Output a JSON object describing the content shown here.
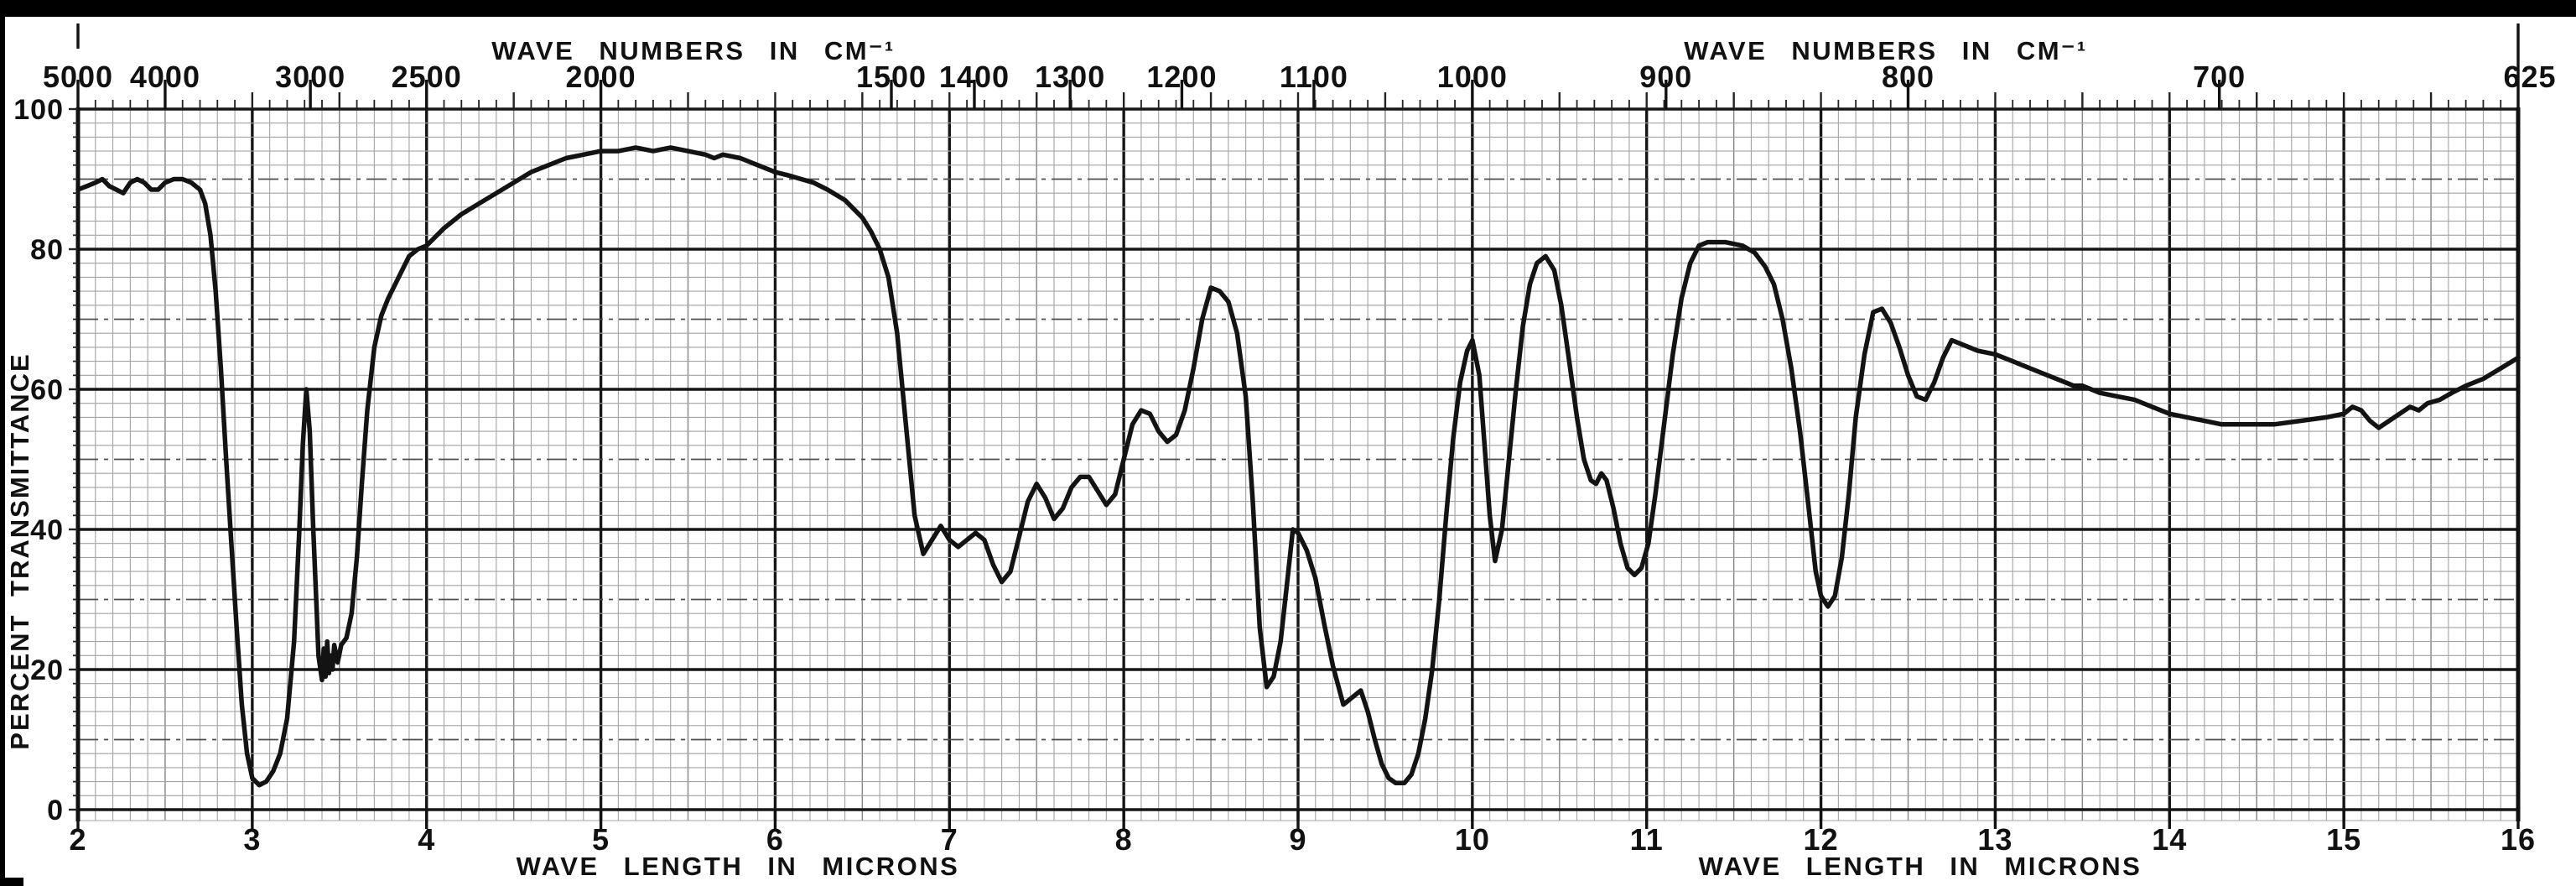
{
  "colors": {
    "paper": "#ffffff",
    "ink": "#111111",
    "grid_minor": "#a3a3a3",
    "grid_dashdot": "#4d4d4d",
    "grid_major": "#161616",
    "scan_border": "#000000"
  },
  "top_axis": {
    "title": "WAVE NUMBERS IN CM⁻¹",
    "ticks": [
      {
        "label": "5000",
        "wavenumber": 5000
      },
      {
        "label": "4000",
        "wavenumber": 4000
      },
      {
        "label": "3000",
        "wavenumber": 3000
      },
      {
        "label": "2500",
        "wavenumber": 2500
      },
      {
        "label": "2000",
        "wavenumber": 2000
      },
      {
        "label": "1500",
        "wavenumber": 1500
      },
      {
        "label": "1400",
        "wavenumber": 1400
      },
      {
        "label": "1300",
        "wavenumber": 1300
      },
      {
        "label": "1200",
        "wavenumber": 1200
      },
      {
        "label": "1100",
        "wavenumber": 1100
      },
      {
        "label": "1000",
        "wavenumber": 1000
      },
      {
        "label": "900",
        "wavenumber": 900
      },
      {
        "label": "800",
        "wavenumber": 800
      },
      {
        "label": "700",
        "wavenumber": 700
      },
      {
        "label": "625",
        "wavenumber": 625
      }
    ]
  },
  "left_axis": {
    "title": "PERCENT TRANSMITTANCE",
    "ticks": [
      {
        "label": "100",
        "value": 100
      },
      {
        "label": "80",
        "value": 80
      },
      {
        "label": "60",
        "value": 60
      },
      {
        "label": "40",
        "value": 40
      },
      {
        "label": "20",
        "value": 20
      },
      {
        "label": "0",
        "value": 0
      }
    ]
  },
  "bottom_axis": {
    "title": "WAVE LENGTH IN MICRONS",
    "ticks": [
      {
        "label": "2",
        "value": 2
      },
      {
        "label": "3",
        "value": 3
      },
      {
        "label": "4",
        "value": 4
      },
      {
        "label": "5",
        "value": 5
      },
      {
        "label": "6",
        "value": 6
      },
      {
        "label": "7",
        "value": 7
      },
      {
        "label": "8",
        "value": 8
      },
      {
        "label": "9",
        "value": 9
      },
      {
        "label": "10",
        "value": 10
      },
      {
        "label": "11",
        "value": 11
      },
      {
        "label": "12",
        "value": 12
      },
      {
        "label": "13",
        "value": 13
      },
      {
        "label": "14",
        "value": 14
      },
      {
        "label": "15",
        "value": 15
      },
      {
        "label": "16",
        "value": 16
      }
    ]
  },
  "chart_data": {
    "type": "line",
    "title": "",
    "xlabel": "WAVE LENGTH IN MICRONS",
    "ylabel": "PERCENT TRANSMITTANCE",
    "secondary_xlabel": "WAVE NUMBERS IN CM⁻¹",
    "x_unit": "microns",
    "y_unit": "percent transmittance",
    "xlim": [
      2,
      16
    ],
    "ylim": [
      0,
      100
    ],
    "grid": "on",
    "x_ticks_microns": [
      2,
      3,
      4,
      5,
      6,
      7,
      8,
      9,
      10,
      11,
      12,
      13,
      14,
      15,
      16
    ],
    "secondary_x_ticks_cm1": [
      5000,
      4000,
      3000,
      2500,
      2000,
      1500,
      1400,
      1300,
      1200,
      1100,
      1000,
      900,
      800,
      700,
      625
    ],
    "y_ticks": [
      0,
      20,
      40,
      60,
      80,
      100
    ],
    "points": [
      [
        2.0,
        88.5
      ],
      [
        2.05,
        89
      ],
      [
        2.1,
        89.5
      ],
      [
        2.14,
        90
      ],
      [
        2.18,
        89
      ],
      [
        2.22,
        88.5
      ],
      [
        2.26,
        88
      ],
      [
        2.3,
        89.5
      ],
      [
        2.34,
        90
      ],
      [
        2.38,
        89.5
      ],
      [
        2.42,
        88.5
      ],
      [
        2.46,
        88.5
      ],
      [
        2.5,
        89.5
      ],
      [
        2.55,
        90
      ],
      [
        2.6,
        90
      ],
      [
        2.65,
        89.5
      ],
      [
        2.7,
        88.5
      ],
      [
        2.73,
        86.5
      ],
      [
        2.76,
        82
      ],
      [
        2.79,
        74
      ],
      [
        2.82,
        63
      ],
      [
        2.85,
        50
      ],
      [
        2.88,
        38
      ],
      [
        2.91,
        26
      ],
      [
        2.94,
        15
      ],
      [
        2.97,
        8
      ],
      [
        3.0,
        4.5
      ],
      [
        3.04,
        3.5
      ],
      [
        3.08,
        4
      ],
      [
        3.12,
        5.5
      ],
      [
        3.16,
        8
      ],
      [
        3.2,
        13
      ],
      [
        3.24,
        24
      ],
      [
        3.27,
        40
      ],
      [
        3.29,
        52
      ],
      [
        3.31,
        60
      ],
      [
        3.33,
        54
      ],
      [
        3.35,
        40
      ],
      [
        3.37,
        28
      ],
      [
        3.38,
        22
      ],
      [
        3.4,
        18.5
      ],
      [
        3.41,
        23
      ],
      [
        3.42,
        19
      ],
      [
        3.43,
        24
      ],
      [
        3.44,
        19.5
      ],
      [
        3.45,
        22
      ],
      [
        3.46,
        20
      ],
      [
        3.47,
        23.5
      ],
      [
        3.49,
        21
      ],
      [
        3.51,
        23.5
      ],
      [
        3.54,
        24.5
      ],
      [
        3.57,
        28
      ],
      [
        3.6,
        36
      ],
      [
        3.63,
        47
      ],
      [
        3.66,
        57
      ],
      [
        3.7,
        66
      ],
      [
        3.74,
        70.5
      ],
      [
        3.78,
        73
      ],
      [
        3.82,
        75
      ],
      [
        3.86,
        77
      ],
      [
        3.9,
        79
      ],
      [
        3.95,
        80
      ],
      [
        4.0,
        80.5
      ],
      [
        4.1,
        83
      ],
      [
        4.2,
        85
      ],
      [
        4.3,
        86.5
      ],
      [
        4.4,
        88
      ],
      [
        4.5,
        89.5
      ],
      [
        4.6,
        91
      ],
      [
        4.7,
        92
      ],
      [
        4.8,
        93
      ],
      [
        4.9,
        93.5
      ],
      [
        5.0,
        94
      ],
      [
        5.1,
        94
      ],
      [
        5.2,
        94.5
      ],
      [
        5.3,
        94
      ],
      [
        5.4,
        94.5
      ],
      [
        5.5,
        94
      ],
      [
        5.6,
        93.5
      ],
      [
        5.65,
        93
      ],
      [
        5.7,
        93.5
      ],
      [
        5.8,
        93
      ],
      [
        5.9,
        92
      ],
      [
        6.0,
        91
      ],
      [
        6.08,
        90.5
      ],
      [
        6.15,
        90
      ],
      [
        6.22,
        89.5
      ],
      [
        6.3,
        88.5
      ],
      [
        6.4,
        87
      ],
      [
        6.5,
        84.5
      ],
      [
        6.55,
        82.5
      ],
      [
        6.6,
        80
      ],
      [
        6.65,
        76
      ],
      [
        6.7,
        68
      ],
      [
        6.75,
        55
      ],
      [
        6.8,
        42
      ],
      [
        6.85,
        36.5
      ],
      [
        6.9,
        38.5
      ],
      [
        6.95,
        40.5
      ],
      [
        7.0,
        38.5
      ],
      [
        7.05,
        37.5
      ],
      [
        7.1,
        38.5
      ],
      [
        7.15,
        39.5
      ],
      [
        7.2,
        38.5
      ],
      [
        7.25,
        35
      ],
      [
        7.3,
        32.5
      ],
      [
        7.35,
        34
      ],
      [
        7.4,
        39
      ],
      [
        7.45,
        44
      ],
      [
        7.5,
        46.5
      ],
      [
        7.55,
        44.5
      ],
      [
        7.6,
        41.5
      ],
      [
        7.65,
        43
      ],
      [
        7.7,
        46
      ],
      [
        7.75,
        47.5
      ],
      [
        7.8,
        47.5
      ],
      [
        7.85,
        45.5
      ],
      [
        7.9,
        43.5
      ],
      [
        7.95,
        45
      ],
      [
        8.0,
        50
      ],
      [
        8.05,
        55
      ],
      [
        8.1,
        57
      ],
      [
        8.15,
        56.5
      ],
      [
        8.2,
        54
      ],
      [
        8.25,
        52.5
      ],
      [
        8.3,
        53.5
      ],
      [
        8.35,
        57
      ],
      [
        8.4,
        63
      ],
      [
        8.45,
        70
      ],
      [
        8.5,
        74.5
      ],
      [
        8.55,
        74
      ],
      [
        8.6,
        72.5
      ],
      [
        8.65,
        68
      ],
      [
        8.7,
        59
      ],
      [
        8.74,
        44
      ],
      [
        8.78,
        26
      ],
      [
        8.82,
        17.5
      ],
      [
        8.86,
        19
      ],
      [
        8.9,
        24
      ],
      [
        8.94,
        33
      ],
      [
        8.97,
        40
      ],
      [
        9.0,
        39.5
      ],
      [
        9.05,
        37
      ],
      [
        9.1,
        33
      ],
      [
        9.15,
        26.5
      ],
      [
        9.2,
        20.5
      ],
      [
        9.26,
        15
      ],
      [
        9.31,
        16
      ],
      [
        9.36,
        17
      ],
      [
        9.4,
        14
      ],
      [
        9.44,
        10
      ],
      [
        9.48,
        6.5
      ],
      [
        9.52,
        4.5
      ],
      [
        9.56,
        3.8
      ],
      [
        9.61,
        3.8
      ],
      [
        9.65,
        5
      ],
      [
        9.69,
        8
      ],
      [
        9.73,
        13
      ],
      [
        9.77,
        20
      ],
      [
        9.81,
        30
      ],
      [
        9.85,
        42
      ],
      [
        9.89,
        53
      ],
      [
        9.93,
        61
      ],
      [
        9.97,
        65.5
      ],
      [
        10.0,
        67
      ],
      [
        10.04,
        62
      ],
      [
        10.07,
        52
      ],
      [
        10.1,
        42
      ],
      [
        10.13,
        35.5
      ],
      [
        10.17,
        40
      ],
      [
        10.21,
        50
      ],
      [
        10.25,
        60
      ],
      [
        10.29,
        69
      ],
      [
        10.33,
        75
      ],
      [
        10.37,
        78
      ],
      [
        10.42,
        79
      ],
      [
        10.47,
        77
      ],
      [
        10.51,
        72
      ],
      [
        10.55,
        65
      ],
      [
        10.6,
        56
      ],
      [
        10.64,
        50
      ],
      [
        10.68,
        47
      ],
      [
        10.71,
        46.5
      ],
      [
        10.74,
        48
      ],
      [
        10.77,
        47
      ],
      [
        10.81,
        43
      ],
      [
        10.85,
        38
      ],
      [
        10.89,
        34.5
      ],
      [
        10.93,
        33.5
      ],
      [
        10.97,
        34.5
      ],
      [
        11.01,
        38
      ],
      [
        11.05,
        45
      ],
      [
        11.1,
        55
      ],
      [
        11.15,
        65
      ],
      [
        11.2,
        73
      ],
      [
        11.25,
        78
      ],
      [
        11.3,
        80.5
      ],
      [
        11.35,
        81
      ],
      [
        11.45,
        81
      ],
      [
        11.55,
        80.5
      ],
      [
        11.62,
        79.5
      ],
      [
        11.68,
        77.5
      ],
      [
        11.73,
        75
      ],
      [
        11.78,
        70
      ],
      [
        11.83,
        63
      ],
      [
        11.88,
        54
      ],
      [
        11.93,
        43
      ],
      [
        11.97,
        34
      ],
      [
        12.0,
        30.5
      ],
      [
        12.04,
        29
      ],
      [
        12.08,
        30.5
      ],
      [
        12.12,
        36
      ],
      [
        12.16,
        45
      ],
      [
        12.2,
        56
      ],
      [
        12.25,
        65
      ],
      [
        12.3,
        71
      ],
      [
        12.35,
        71.5
      ],
      [
        12.4,
        69.5
      ],
      [
        12.45,
        66
      ],
      [
        12.5,
        62
      ],
      [
        12.55,
        59
      ],
      [
        12.6,
        58.5
      ],
      [
        12.65,
        61
      ],
      [
        12.7,
        64.5
      ],
      [
        12.75,
        67
      ],
      [
        12.8,
        66.5
      ],
      [
        12.9,
        65.5
      ],
      [
        13.0,
        65
      ],
      [
        13.1,
        64
      ],
      [
        13.2,
        63
      ],
      [
        13.3,
        62
      ],
      [
        13.4,
        61
      ],
      [
        13.45,
        60.5
      ],
      [
        13.5,
        60.5
      ],
      [
        13.6,
        59.5
      ],
      [
        13.7,
        59
      ],
      [
        13.8,
        58.5
      ],
      [
        13.9,
        57.5
      ],
      [
        14.0,
        56.5
      ],
      [
        14.1,
        56
      ],
      [
        14.2,
        55.5
      ],
      [
        14.3,
        55
      ],
      [
        14.45,
        55
      ],
      [
        14.6,
        55
      ],
      [
        14.75,
        55.5
      ],
      [
        14.9,
        56
      ],
      [
        15.0,
        56.5
      ],
      [
        15.05,
        57.5
      ],
      [
        15.1,
        57
      ],
      [
        15.15,
        55.5
      ],
      [
        15.2,
        54.5
      ],
      [
        15.26,
        55.5
      ],
      [
        15.32,
        56.5
      ],
      [
        15.38,
        57.5
      ],
      [
        15.43,
        57
      ],
      [
        15.48,
        58
      ],
      [
        15.55,
        58.5
      ],
      [
        15.62,
        59.5
      ],
      [
        15.7,
        60.5
      ],
      [
        15.8,
        61.5
      ],
      [
        15.9,
        63
      ],
      [
        16.0,
        64.5
      ]
    ]
  }
}
